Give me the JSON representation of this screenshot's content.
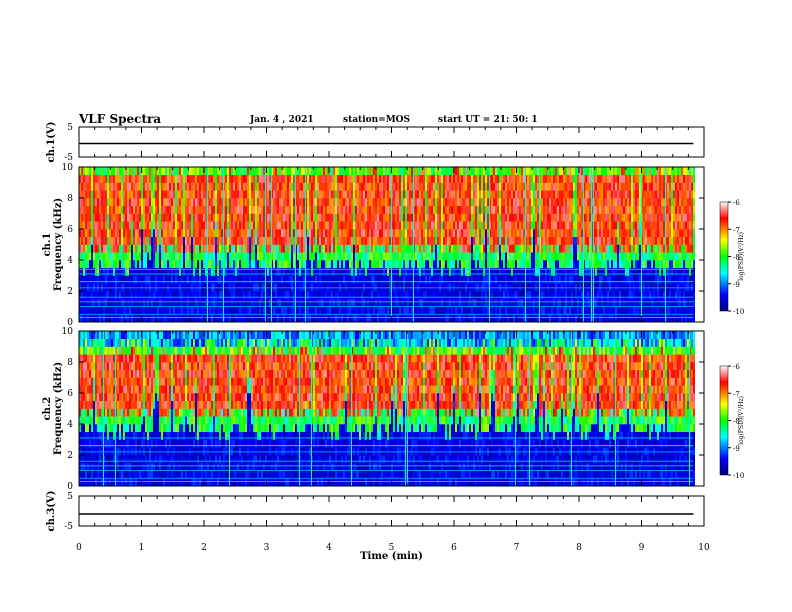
{
  "header": {
    "title": "VLF Spectra",
    "date": "Jan. 4 , 2021",
    "station": "station=MOS",
    "start": "start UT = 21: 50: 1"
  },
  "chart_data": [
    {
      "type": "line",
      "name_panel": "ch1-waveform",
      "ylabel": "ch.1(V)",
      "ylim": [
        -5,
        5
      ],
      "yticks": [
        "5",
        "-5"
      ],
      "x": [
        0,
        9.83
      ],
      "values": [
        -0.5,
        -0.5
      ],
      "xlim": [
        0,
        10
      ]
    },
    {
      "type": "heatmap",
      "name_panel": "ch1-spectrogram",
      "ylabel": "ch.1\nFrequency (kHz)",
      "ylim": [
        0,
        10
      ],
      "yticks": [
        "0",
        "2",
        "4",
        "6",
        "8",
        "10"
      ],
      "xlim": [
        0,
        10
      ],
      "x_data_end": 9.83,
      "band_low_khz": 4.5,
      "band_high_khz": 9.0,
      "colorbar": {
        "label": "log(PSD)(V²/Hz)",
        "ticks": [
          "-6",
          "-7",
          "-8",
          "-9",
          "-10"
        ],
        "range": [
          -10,
          -6
        ]
      }
    },
    {
      "type": "heatmap",
      "name_panel": "ch2-spectrogram",
      "ylabel": "ch.2\nFrequency (kHz)",
      "ylim": [
        0,
        10
      ],
      "yticks": [
        "0",
        "2",
        "4",
        "6",
        "8",
        "10"
      ],
      "xlim": [
        0,
        10
      ],
      "x_data_end": 9.83,
      "band_low_khz": 4.5,
      "band_high_khz": 8.0,
      "colorbar": {
        "label": "log(PSD)(V²/Hz)",
        "ticks": [
          "-6",
          "-7",
          "-8",
          "-9",
          "-10"
        ],
        "range": [
          -10,
          -6
        ]
      }
    },
    {
      "type": "line",
      "name_panel": "ch3-waveform",
      "ylabel": "ch.3(V)",
      "ylim": [
        -5,
        5
      ],
      "yticks": [
        "5",
        "-5"
      ],
      "x": [
        0,
        9.83
      ],
      "values": [
        -1.0,
        -1.0
      ],
      "xlim": [
        0,
        10
      ]
    }
  ],
  "xaxis": {
    "label": "Time (min)",
    "ticks": [
      "0",
      "1",
      "2",
      "3",
      "4",
      "5",
      "6",
      "7",
      "8",
      "9",
      "10"
    ]
  },
  "colors": {
    "jet": [
      "#000080",
      "#0000ff",
      "#00ffff",
      "#00ff00",
      "#ffff00",
      "#ff0000",
      "#ffffff"
    ],
    "background": "#ffffff",
    "low_floor": "#000033"
  }
}
